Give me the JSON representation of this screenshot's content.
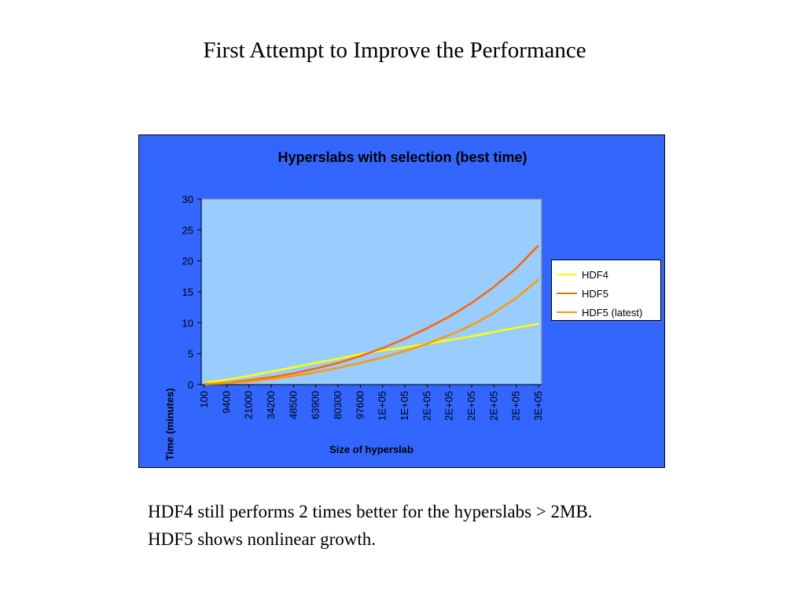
{
  "slide": {
    "title": "First Attempt to Improve the Performance",
    "caption_lines": [
      "HDF4 still performs 2 times better for the hyperslabs > 2MB.",
      "HDF5 shows nonlinear growth."
    ]
  },
  "colors": {
    "chart_background": "#3366ff",
    "plot_background": "#99ccff",
    "HDF4": "#ffff00",
    "HDF5": "#ff6600",
    "HDF5 (latest)": "#ff9900"
  },
  "chart_data": {
    "type": "line",
    "title": "Hyperslabs with selection (best time)",
    "xlabel": "Size of hyperslab",
    "ylabel": "Time (minutes)",
    "ylim": [
      0,
      30
    ],
    "yticks": [
      "0",
      "5",
      "10",
      "15",
      "20",
      "25",
      "30"
    ],
    "x_tick_labels": [
      "100",
      "9400",
      "21000",
      "34200",
      "48500",
      "63900",
      "80300",
      "97600",
      "1E+05",
      "1E+05",
      "2E+05",
      "2E+05",
      "2E+05",
      "2E+05",
      "2E+05",
      "3E+05"
    ],
    "grid": false,
    "legend_position": "right",
    "series": [
      {
        "name": "HDF4",
        "x": [
          0,
          1,
          2,
          3,
          4,
          5,
          6,
          7,
          8,
          9,
          10,
          11,
          12,
          13,
          14,
          15
        ],
        "y": [
          0.3,
          0.8,
          1.4,
          2.1,
          2.8,
          3.5,
          4.2,
          4.9,
          5.5,
          6.0,
          6.6,
          7.2,
          7.8,
          8.5,
          9.2,
          9.8
        ]
      },
      {
        "name": "HDF5",
        "x": [
          0,
          1,
          2,
          3,
          4,
          5,
          6,
          7,
          8,
          9,
          10,
          11,
          12,
          13,
          14,
          15
        ],
        "y": [
          0.1,
          0.3,
          0.7,
          1.2,
          1.8,
          2.6,
          3.5,
          4.6,
          5.9,
          7.4,
          9.1,
          11.0,
          13.2,
          15.8,
          18.8,
          22.5
        ]
      },
      {
        "name": "HDF5 (latest)",
        "x": [
          0,
          1,
          2,
          3,
          4,
          5,
          6,
          7,
          8,
          9,
          10,
          11,
          12,
          13,
          14,
          15
        ],
        "y": [
          0.1,
          0.2,
          0.5,
          0.9,
          1.4,
          2.0,
          2.7,
          3.5,
          4.4,
          5.4,
          6.6,
          8.0,
          9.6,
          11.6,
          14.0,
          17.0
        ]
      }
    ]
  }
}
